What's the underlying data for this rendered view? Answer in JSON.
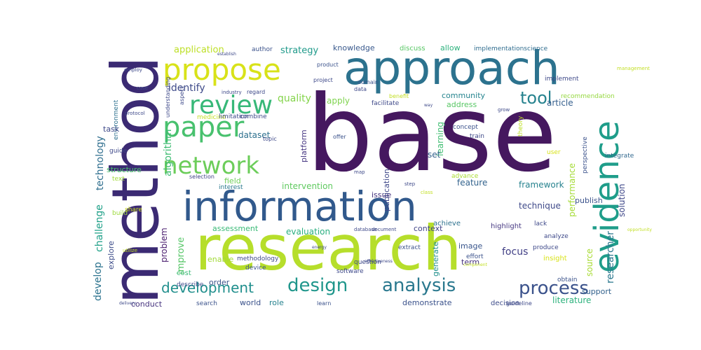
{
  "words": [
    {
      "text": "base",
      "color": "#45185f"
    },
    {
      "text": "research",
      "color": "#b6de2b"
    },
    {
      "text": "method",
      "color": "#3b2a73"
    },
    {
      "text": "approach",
      "color": "#2c728e"
    },
    {
      "text": "information",
      "color": "#31598c"
    },
    {
      "text": "evidence",
      "color": "#1f9d8a"
    },
    {
      "text": "propose",
      "color": "#d8e219"
    },
    {
      "text": "paper",
      "color": "#48c16e"
    },
    {
      "text": "review",
      "color": "#37b878"
    },
    {
      "text": "network",
      "color": "#6ccd5a"
    },
    {
      "text": "design",
      "color": "#1f968b"
    },
    {
      "text": "analysis",
      "color": "#2a788e"
    },
    {
      "text": "development",
      "color": "#218f8d"
    },
    {
      "text": "process",
      "color": "#3b528b"
    },
    {
      "text": "tool",
      "color": "#26828e"
    },
    {
      "text": "identify",
      "color": "#3e4a89"
    },
    {
      "text": "quality",
      "color": "#84d44b"
    },
    {
      "text": "strategy",
      "color": "#1f9a8a"
    },
    {
      "text": "application",
      "color": "#bddf26"
    },
    {
      "text": "knowledge",
      "color": "#38588c"
    },
    {
      "text": "implementationscience",
      "color": "#2f6c8e"
    },
    {
      "text": "discuss",
      "color": "#58c765"
    },
    {
      "text": "allow",
      "color": "#2db27d"
    },
    {
      "text": "community",
      "color": "#25848e"
    },
    {
      "text": "address",
      "color": "#58c765"
    },
    {
      "text": "apply",
      "color": "#7fd34e"
    },
    {
      "text": "article",
      "color": "#355f8d"
    },
    {
      "text": "algorithm",
      "color": "#3fbc73"
    },
    {
      "text": "technology",
      "color": "#2e6e8e"
    },
    {
      "text": "dataset",
      "color": "#2d708e"
    },
    {
      "text": "performance",
      "color": "#a5db36"
    },
    {
      "text": "solution",
      "color": "#3f4889"
    },
    {
      "text": "researcher",
      "color": "#2a778e"
    },
    {
      "text": "framework",
      "color": "#26828e"
    },
    {
      "text": "feature",
      "color": "#33638d"
    },
    {
      "text": "learning",
      "color": "#40bd72"
    },
    {
      "text": "set",
      "color": "#33628d"
    },
    {
      "text": "intervention",
      "color": "#60ca60"
    },
    {
      "text": "field",
      "color": "#6ece58"
    },
    {
      "text": "publish",
      "color": "#3b528b"
    },
    {
      "text": "technique",
      "color": "#3e4989"
    },
    {
      "text": "structure",
      "color": "#4ac16d"
    },
    {
      "text": "challenge",
      "color": "#1fa088"
    },
    {
      "text": "explore",
      "color": "#3d4d8a"
    },
    {
      "text": "develop",
      "color": "#2c738e"
    },
    {
      "text": "problem",
      "color": "#481b6d"
    },
    {
      "text": "improve",
      "color": "#56c667"
    },
    {
      "text": "assessment",
      "color": "#3aba76"
    },
    {
      "text": "evaluation",
      "color": "#29af7f"
    },
    {
      "text": "context",
      "color": "#404387"
    },
    {
      "text": "achieve",
      "color": "#2d718e"
    },
    {
      "text": "focus",
      "color": "#424086"
    },
    {
      "text": "image",
      "color": "#39558c"
    },
    {
      "text": "source",
      "color": "#a8db34"
    },
    {
      "text": "support",
      "color": "#33628d"
    },
    {
      "text": "literature",
      "color": "#2db27d"
    },
    {
      "text": "decision",
      "color": "#3e4c8a"
    },
    {
      "text": "demonstrate",
      "color": "#3b528b"
    },
    {
      "text": "conduct",
      "color": "#46337e"
    },
    {
      "text": "world",
      "color": "#3b528b"
    },
    {
      "text": "role",
      "color": "#26828e"
    },
    {
      "text": "enable",
      "color": "#a2da37"
    },
    {
      "text": "order",
      "color": "#3b528b"
    },
    {
      "text": "cost",
      "color": "#3aba76"
    },
    {
      "text": "term",
      "color": "#46337e"
    },
    {
      "text": "generate",
      "color": "#21908d"
    },
    {
      "text": "issue",
      "color": "#46337e"
    },
    {
      "text": "publication",
      "color": "#3f4889"
    },
    {
      "text": "platform",
      "color": "#453581"
    },
    {
      "text": "environment",
      "color": "#2d708e"
    },
    {
      "text": "task",
      "color": "#3e4989"
    },
    {
      "text": "guide",
      "color": "#3e4989"
    },
    {
      "text": "text",
      "color": "#a0da39"
    },
    {
      "text": "build",
      "color": "#9dd93b"
    },
    {
      "text": "share",
      "color": "#cde11d"
    },
    {
      "text": "interest",
      "color": "#2a788e"
    },
    {
      "text": "selection",
      "color": "#414487"
    },
    {
      "text": "concept",
      "color": "#3b528b"
    },
    {
      "text": "train",
      "color": "#3e4989"
    },
    {
      "text": "advance",
      "color": "#aadc32"
    },
    {
      "text": "theory",
      "color": "#bddf26"
    },
    {
      "text": "map",
      "color": "#3e4989"
    },
    {
      "text": "user",
      "color": "#d8e219"
    },
    {
      "text": "perspective",
      "color": "#3b528b"
    },
    {
      "text": "integrate",
      "color": "#31688e"
    },
    {
      "text": "implement",
      "color": "#3e4989"
    },
    {
      "text": "recommendation",
      "color": "#95d840"
    },
    {
      "text": "highlight",
      "color": "#453781"
    },
    {
      "text": "analyze",
      "color": "#3e4989"
    },
    {
      "text": "lack",
      "color": "#3e4989"
    },
    {
      "text": "extract",
      "color": "#3b528b"
    },
    {
      "text": "effort",
      "color": "#3b528b"
    },
    {
      "text": "insight",
      "color": "#d8e219"
    },
    {
      "text": "produce",
      "color": "#3e4989"
    },
    {
      "text": "obtain",
      "color": "#3b528b"
    },
    {
      "text": "question",
      "color": "#3e4989"
    },
    {
      "text": "software",
      "color": "#3e4989"
    },
    {
      "text": "device",
      "color": "#3b528b"
    },
    {
      "text": "methodology",
      "color": "#3e4989"
    },
    {
      "text": "describe",
      "color": "#3e4989"
    },
    {
      "text": "search",
      "color": "#3b528b"
    },
    {
      "text": "learn",
      "color": "#3b528b"
    },
    {
      "text": "guideline",
      "color": "#3e4989"
    },
    {
      "text": "medicine",
      "color": "#c2df23"
    },
    {
      "text": "limitation",
      "color": "#3e4989"
    },
    {
      "text": "combine",
      "color": "#3e4989"
    },
    {
      "text": "understanding",
      "color": "#3e4989"
    },
    {
      "text": "aspect",
      "color": "#3e4989"
    },
    {
      "text": "industry",
      "color": "#3e4989"
    },
    {
      "text": "regard",
      "color": "#3e4989"
    },
    {
      "text": "project",
      "color": "#3e4989"
    },
    {
      "text": "product",
      "color": "#3b528b"
    },
    {
      "text": "data",
      "color": "#3e4989"
    },
    {
      "text": "domain",
      "color": "#3b528b"
    },
    {
      "text": "facilitate",
      "color": "#3e4989"
    },
    {
      "text": "benefit",
      "color": "#c2df23"
    },
    {
      "text": "topic",
      "color": "#3e4989"
    },
    {
      "text": "offer",
      "color": "#3b528b"
    },
    {
      "text": "author",
      "color": "#3b528b"
    },
    {
      "text": "establish",
      "color": "#3e4989"
    },
    {
      "text": "employ",
      "color": "#3e4989"
    },
    {
      "text": "protocol",
      "color": "#3e4989"
    },
    {
      "text": "case",
      "color": "#3e4989"
    },
    {
      "text": "step",
      "color": "#3e4989"
    },
    {
      "text": "class",
      "color": "#c2df23"
    },
    {
      "text": "database",
      "color": "#3e4989"
    },
    {
      "text": "document",
      "color": "#3e4989"
    },
    {
      "text": "energy",
      "color": "#3e4989"
    },
    {
      "text": "effectiveness",
      "color": "#3e4989"
    },
    {
      "text": "component",
      "color": "#c2df23"
    },
    {
      "text": "utilize",
      "color": "#c2df23"
    },
    {
      "text": "opportunity",
      "color": "#c2df23"
    },
    {
      "text": "management",
      "color": "#c2df23"
    },
    {
      "text": "grow",
      "color": "#3e4989"
    },
    {
      "text": "way",
      "color": "#3e4989"
    },
    {
      "text": "delivery",
      "color": "#3e4989"
    }
  ]
}
